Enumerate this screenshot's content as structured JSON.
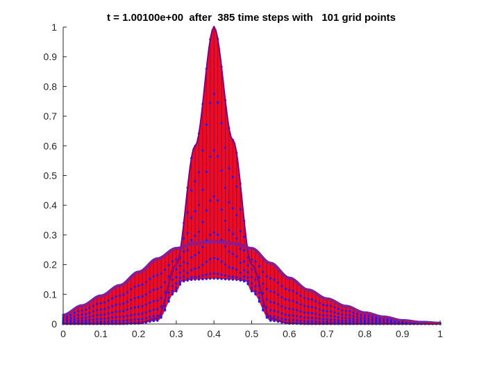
{
  "chart_data": {
    "type": "line",
    "title": "t = 1.00100e+00  after  385 time steps with   101 grid points",
    "xlabel": "",
    "ylabel": "",
    "xlim": [
      0,
      1
    ],
    "ylim": [
      0,
      1
    ],
    "xticks": [
      "0",
      "0.1",
      "0.2",
      "0.3",
      "0.4",
      "0.5",
      "0.6",
      "0.7",
      "0.8",
      "0.9",
      "1"
    ],
    "yticks": [
      "0",
      "0.1",
      "0.2",
      "0.3",
      "0.4",
      "0.5",
      "0.6",
      "0.7",
      "0.8",
      "0.9",
      "1"
    ],
    "grid": false,
    "legend": "none",
    "x": [
      0,
      0.05,
      0.1,
      0.15,
      0.2,
      0.25,
      0.3,
      0.35,
      0.4,
      0.45,
      0.5,
      0.55,
      0.6,
      0.65,
      0.7,
      0.75,
      0.8,
      0.85,
      0.9,
      0.95,
      1
    ],
    "series": [
      {
        "role": "initial",
        "color": "#800080",
        "values": [
          0.0,
          0.0,
          0.0,
          0.0,
          0.002,
          0.02,
          0.2,
          0.6,
          1.0,
          0.62,
          0.2,
          0.02,
          0.002,
          0.0,
          0.0,
          0.0,
          0.0,
          0.0,
          0.0,
          0.0,
          0.0
        ]
      },
      {
        "role": "final",
        "color": "#ff0000",
        "values": [
          0.03,
          0.062,
          0.095,
          0.13,
          0.175,
          0.22,
          0.255,
          0.272,
          0.278,
          0.272,
          0.255,
          0.205,
          0.155,
          0.115,
          0.085,
          0.06,
          0.038,
          0.024,
          0.012,
          0.006,
          0.003
        ]
      }
    ],
    "colors": {
      "fill": "#e8001c",
      "markers": "#1a1aff",
      "axes": "#262626"
    }
  }
}
